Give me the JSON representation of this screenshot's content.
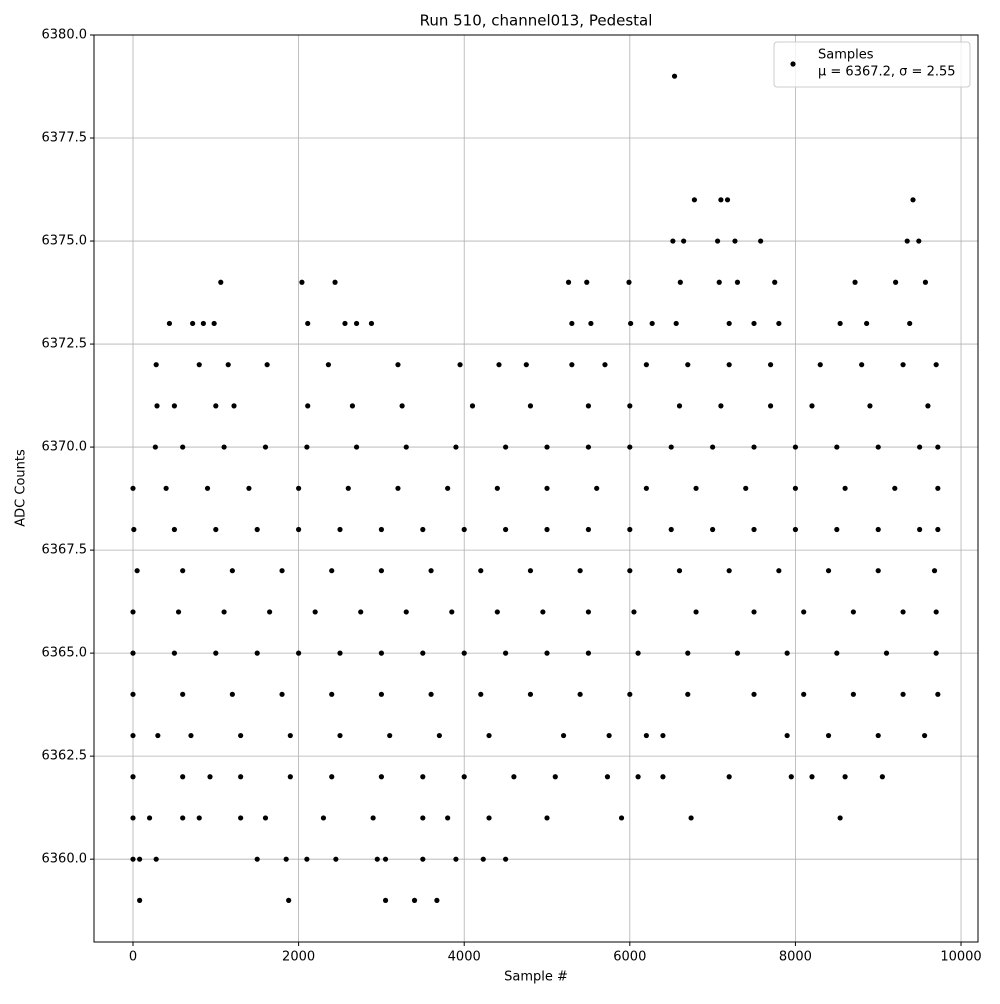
{
  "chart_data": {
    "type": "scatter",
    "title": "Run 510, channel013, Pedestal",
    "x_label": "Sample #",
    "y_label": "ADC Counts",
    "xlim": [
      -471,
      10205
    ],
    "ylim": [
      6357.99,
      6380
    ],
    "xticks": [
      0,
      2000,
      4000,
      6000,
      8000,
      10000
    ],
    "yticks": [
      {
        "value": 6360,
        "label": "6360.0"
      },
      {
        "value": 6362.5,
        "label": "6362.5"
      },
      {
        "value": 6365,
        "label": "6365.0"
      },
      {
        "value": 6367.5,
        "label": "6367.5"
      },
      {
        "value": 6370,
        "label": "6370.0"
      },
      {
        "value": 6372.5,
        "label": "6372.5"
      },
      {
        "value": 6375,
        "label": "6375.0"
      },
      {
        "value": 6377.5,
        "label": "6377.5"
      },
      {
        "value": 6380,
        "label": "6380.0"
      }
    ],
    "grid": true,
    "legend_position": "upper right",
    "legend_stats": "μ = 6367.2, σ = 2.55",
    "series": [
      {
        "name": "Samples",
        "color": "#000000",
        "x": [
          6540,
          6780,
          7100,
          7180,
          9420,
          6520,
          6650,
          7060,
          7270,
          7580,
          9350,
          9490,
          1060,
          2040,
          2440,
          5260,
          5480,
          5990,
          6610,
          7080,
          7300,
          7750,
          8720,
          9210,
          9570,
          440,
          720,
          850,
          980,
          2110,
          2560,
          2700,
          2880,
          5300,
          5530,
          6010,
          6270,
          6560,
          7200,
          7500,
          7800,
          8540,
          8860,
          9380,
          280,
          800,
          1150,
          1620,
          2360,
          3200,
          3950,
          4420,
          4750,
          5300,
          5700,
          6200,
          6700,
          7200,
          7700,
          8300,
          8800,
          9300,
          9700,
          290,
          500,
          1000,
          1220,
          2110,
          2650,
          3250,
          4100,
          4800,
          5500,
          6000,
          6600,
          7100,
          7700,
          8200,
          8900,
          9600,
          270,
          600,
          1100,
          1600,
          2100,
          2700,
          3300,
          3900,
          4500,
          5000,
          5500,
          6000,
          6500,
          7000,
          7500,
          8000,
          8500,
          9000,
          9500,
          9720,
          0,
          400,
          900,
          1400,
          2000,
          2600,
          3200,
          3800,
          4400,
          5000,
          5600,
          6200,
          6800,
          7400,
          8000,
          8600,
          9200,
          9720,
          10,
          500,
          1000,
          1500,
          2000,
          2500,
          3000,
          3500,
          4000,
          4500,
          5000,
          5500,
          6000,
          6500,
          7000,
          7500,
          8000,
          8500,
          9000,
          9500,
          9720,
          50,
          600,
          1200,
          1800,
          2400,
          3000,
          3600,
          4200,
          4800,
          5400,
          6000,
          6600,
          7200,
          7800,
          8400,
          9000,
          9680,
          0,
          550,
          1100,
          1650,
          2200,
          2750,
          3300,
          3850,
          4400,
          4950,
          5500,
          6050,
          6800,
          7500,
          8100,
          8700,
          9300,
          9700,
          0,
          500,
          1000,
          1500,
          2000,
          2500,
          3000,
          3500,
          4000,
          4500,
          5000,
          5500,
          6100,
          6700,
          7300,
          7900,
          8500,
          9100,
          9700,
          0,
          600,
          1200,
          1800,
          2400,
          3000,
          3600,
          4200,
          4800,
          5400,
          6000,
          6700,
          7500,
          8100,
          8700,
          9300,
          9720,
          0,
          300,
          700,
          1300,
          1900,
          2500,
          3100,
          3700,
          4300,
          5200,
          5750,
          6200,
          6400,
          7900,
          8400,
          9000,
          9560,
          0,
          600,
          930,
          1300,
          1900,
          2400,
          3000,
          3500,
          4000,
          4600,
          5100,
          5730,
          6100,
          6400,
          7200,
          7950,
          8200,
          8600,
          9050,
          0,
          200,
          600,
          800,
          1300,
          1600,
          2300,
          2900,
          3500,
          3800,
          4300,
          5000,
          5900,
          6740,
          8540,
          0,
          80,
          280,
          1500,
          1850,
          2100,
          2450,
          2950,
          3050,
          3500,
          3900,
          4230,
          4500,
          80,
          1880,
          3050,
          3400,
          3670
        ],
        "values": [
          6379,
          6376,
          6376,
          6376,
          6376,
          6375,
          6375,
          6375,
          6375,
          6375,
          6375,
          6375,
          6374,
          6374,
          6374,
          6374,
          6374,
          6374,
          6374,
          6374,
          6374,
          6374,
          6374,
          6374,
          6374,
          6373,
          6373,
          6373,
          6373,
          6373,
          6373,
          6373,
          6373,
          6373,
          6373,
          6373,
          6373,
          6373,
          6373,
          6373,
          6373,
          6373,
          6373,
          6373,
          6372,
          6372,
          6372,
          6372,
          6372,
          6372,
          6372,
          6372,
          6372,
          6372,
          6372,
          6372,
          6372,
          6372,
          6372,
          6372,
          6372,
          6372,
          6372,
          6371,
          6371,
          6371,
          6371,
          6371,
          6371,
          6371,
          6371,
          6371,
          6371,
          6371,
          6371,
          6371,
          6371,
          6371,
          6371,
          6371,
          6370,
          6370,
          6370,
          6370,
          6370,
          6370,
          6370,
          6370,
          6370,
          6370,
          6370,
          6370,
          6370,
          6370,
          6370,
          6370,
          6370,
          6370,
          6370,
          6370,
          6369,
          6369,
          6369,
          6369,
          6369,
          6369,
          6369,
          6369,
          6369,
          6369,
          6369,
          6369,
          6369,
          6369,
          6369,
          6369,
          6369,
          6369,
          6368,
          6368,
          6368,
          6368,
          6368,
          6368,
          6368,
          6368,
          6368,
          6368,
          6368,
          6368,
          6368,
          6368,
          6368,
          6368,
          6368,
          6368,
          6368,
          6368,
          6368,
          6367,
          6367,
          6367,
          6367,
          6367,
          6367,
          6367,
          6367,
          6367,
          6367,
          6367,
          6367,
          6367,
          6367,
          6367,
          6367,
          6367,
          6366,
          6366,
          6366,
          6366,
          6366,
          6366,
          6366,
          6366,
          6366,
          6366,
          6366,
          6366,
          6366,
          6366,
          6366,
          6366,
          6366,
          6366,
          6365,
          6365,
          6365,
          6365,
          6365,
          6365,
          6365,
          6365,
          6365,
          6365,
          6365,
          6365,
          6365,
          6365,
          6365,
          6365,
          6365,
          6365,
          6365,
          6364,
          6364,
          6364,
          6364,
          6364,
          6364,
          6364,
          6364,
          6364,
          6364,
          6364,
          6364,
          6364,
          6364,
          6364,
          6364,
          6364,
          6363,
          6363,
          6363,
          6363,
          6363,
          6363,
          6363,
          6363,
          6363,
          6363,
          6363,
          6363,
          6363,
          6363,
          6363,
          6363,
          6363,
          6362,
          6362,
          6362,
          6362,
          6362,
          6362,
          6362,
          6362,
          6362,
          6362,
          6362,
          6362,
          6362,
          6362,
          6362,
          6362,
          6362,
          6362,
          6362,
          6361,
          6361,
          6361,
          6361,
          6361,
          6361,
          6361,
          6361,
          6361,
          6361,
          6361,
          6361,
          6361,
          6361,
          6361,
          6360,
          6360,
          6360,
          6360,
          6360,
          6360,
          6360,
          6360,
          6360,
          6360,
          6360,
          6360,
          6360,
          6359,
          6359,
          6359,
          6359,
          6359
        ]
      }
    ]
  }
}
